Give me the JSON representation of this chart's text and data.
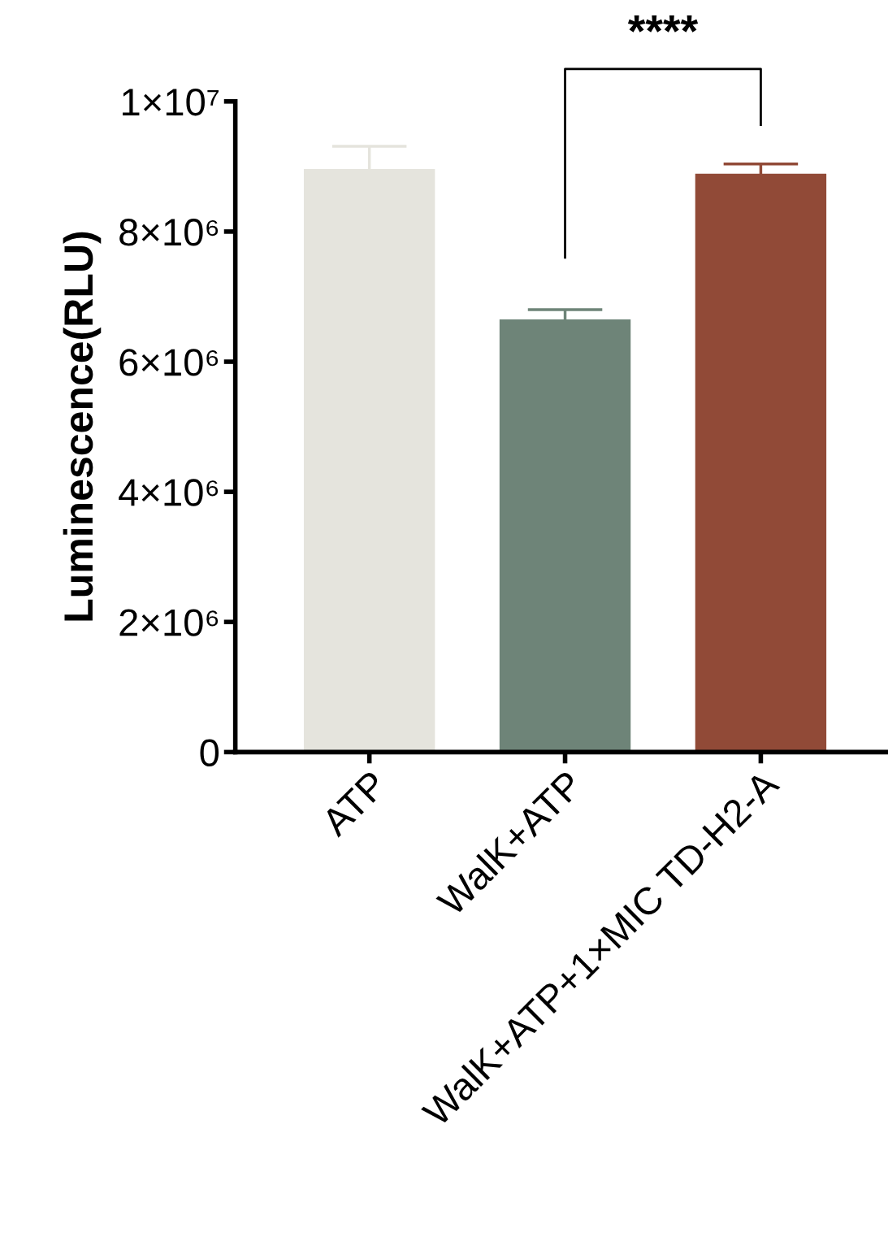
{
  "chart_data": {
    "type": "bar",
    "ylabel": "Luminescence(RLU)",
    "categories": [
      "ATP",
      "WalK+ATP",
      "WalK+ATP+1×MIC TD-H2-A"
    ],
    "values": [
      8960000,
      6650000,
      8890000
    ],
    "colors": [
      "#e5e4dd",
      "#6e8478",
      "#914a37"
    ],
    "errors": [
      350000,
      150000,
      150000
    ],
    "ylim": [
      0,
      10000000
    ],
    "yticks": [
      {
        "value": 0,
        "label": "0"
      },
      {
        "value": 2000000,
        "label": "2×10⁶"
      },
      {
        "value": 4000000,
        "label": "4×10⁶"
      },
      {
        "value": 6000000,
        "label": "6×10⁶"
      },
      {
        "value": 8000000,
        "label": "8×10⁶"
      },
      {
        "value": 10000000,
        "label": "1×10⁷"
      }
    ],
    "grid": false,
    "annotations": [
      "****"
    ]
  }
}
